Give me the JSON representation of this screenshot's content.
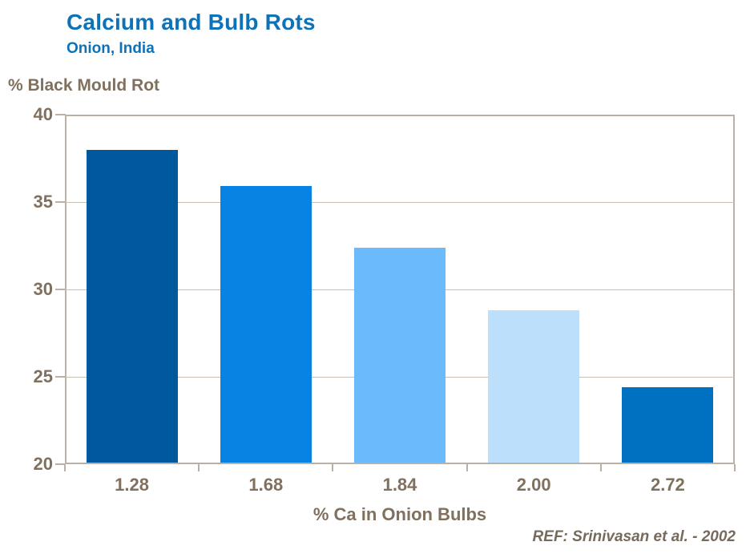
{
  "colors": {
    "title_blue": "#0E72B9",
    "axis_text": "#80705E",
    "ref_text": "#756A5B",
    "frame": "#BAB0A4",
    "gridline": "#C8BFB4",
    "background": "#FFFFFF"
  },
  "header": {
    "title": "Calcium and Bulb Rots",
    "subtitle": "Onion, India"
  },
  "footer": {
    "reference": "REF: Srinivasan et al. - 2002"
  },
  "chart_data": {
    "type": "bar",
    "title": "Calcium and Bulb Rots",
    "subtitle": "Onion, India",
    "ylabel": "% Black Mould Rot",
    "xlabel": "% Ca in Onion Bulbs",
    "categories": [
      "1.28",
      "1.68",
      "1.84",
      "2.00",
      "2.72"
    ],
    "values": [
      38.0,
      35.9,
      32.4,
      28.8,
      24.4
    ],
    "bar_colors": [
      "#00599C",
      "#0883E4",
      "#6BBAFC",
      "#BCDFFB",
      "#0070C0"
    ],
    "ylim": [
      20,
      40
    ],
    "yticks": [
      20,
      25,
      30,
      35,
      40
    ],
    "gridlines_at": [
      25,
      30,
      35
    ],
    "grid": "horizontal-only",
    "legend": "none",
    "annotation": "REF: Srinivasan et al. - 2002"
  }
}
